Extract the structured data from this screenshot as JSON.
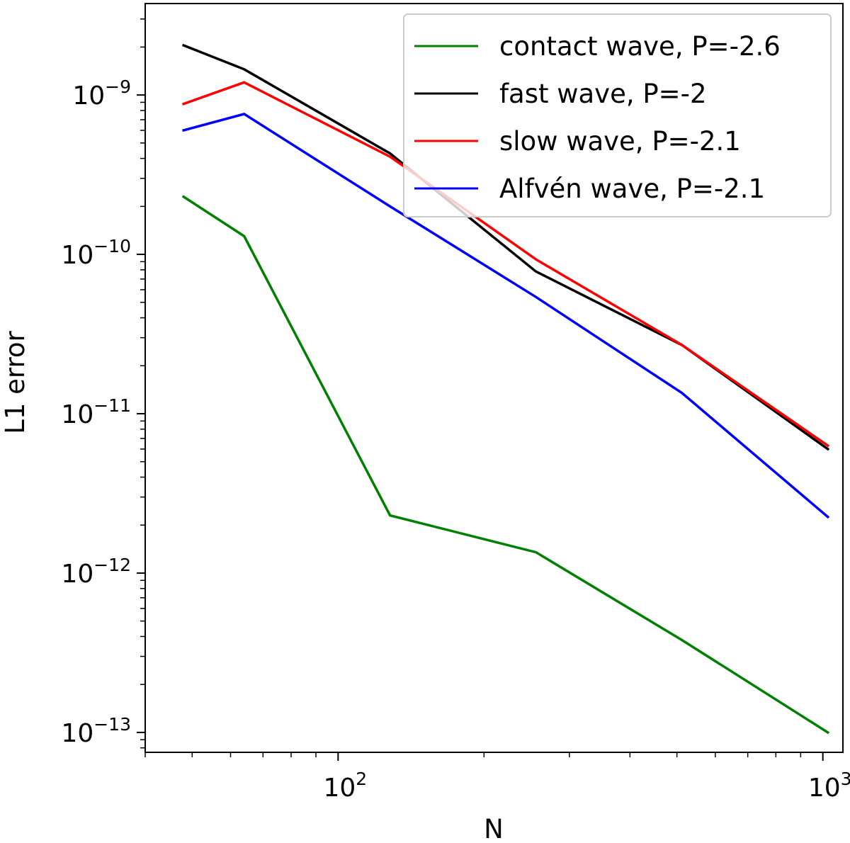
{
  "chart_data": {
    "type": "line",
    "scale": {
      "x": "log",
      "y": "log"
    },
    "xlabel": "N",
    "ylabel": "L1 error",
    "xlim": [
      40,
      1100
    ],
    "ylim": [
      7.5e-14,
      3.75e-09
    ],
    "x_major_ticks": [
      {
        "value": 100,
        "base": "10",
        "exp": "2"
      },
      {
        "value": 1000,
        "base": "10",
        "exp": "3"
      }
    ],
    "y_major_ticks": [
      {
        "value": 1e-09,
        "base": "10",
        "exp": "−9"
      },
      {
        "value": 1e-10,
        "base": "10",
        "exp": "−10"
      },
      {
        "value": 1e-11,
        "base": "10",
        "exp": "−11"
      },
      {
        "value": 1e-12,
        "base": "10",
        "exp": "−12"
      },
      {
        "value": 1e-13,
        "base": "10",
        "exp": "−13"
      }
    ],
    "x": [
      48,
      64,
      128,
      256,
      512,
      1024
    ],
    "series": [
      {
        "name": "contact wave, P=-2.6",
        "color": "#008000",
        "values": [
          2.3e-10,
          1.3e-10,
          2.3e-12,
          1.35e-12,
          3.8e-13,
          1e-13
        ]
      },
      {
        "name": "fast wave, P=-2",
        "color": "#000000",
        "values": [
          2.05e-09,
          1.45e-09,
          4.3e-10,
          7.8e-11,
          2.7e-11,
          6e-12
        ]
      },
      {
        "name": "slow wave, P=-2.1",
        "color": "#ff0000",
        "values": [
          8.8e-10,
          1.2e-09,
          4.1e-10,
          9.3e-11,
          2.7e-11,
          6.3e-12
        ]
      },
      {
        "name": "Alfvén wave, P=-2.1",
        "color": "#0000ff",
        "values": [
          6e-10,
          7.6e-10,
          2e-10,
          5.4e-11,
          1.35e-11,
          2.25e-12
        ]
      }
    ],
    "legend": {
      "position": "top-right"
    }
  }
}
